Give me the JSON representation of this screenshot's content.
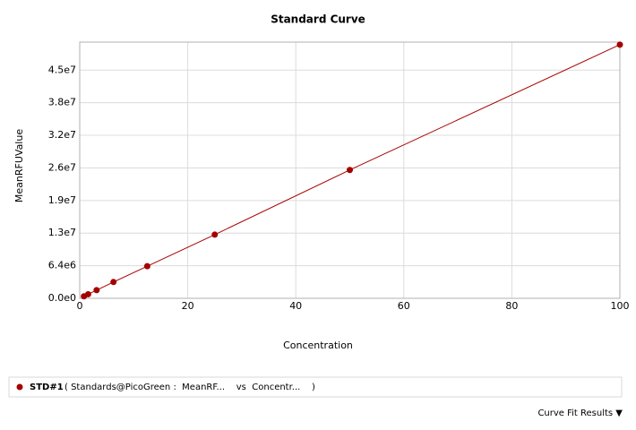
{
  "chart_data": {
    "type": "line",
    "title": "Standard Curve",
    "x_label": "Concentration",
    "y_label": "MeanRFUValue",
    "x": [
      0.78125,
      1.5625,
      3.125,
      6.25,
      12.5,
      25,
      50,
      100
    ],
    "series": [
      {
        "name": "STD#1",
        "color": "#a50000",
        "values": [
          400000,
          800000,
          1600000,
          3200000,
          6300000,
          12500000,
          25200000,
          49800000
        ]
      }
    ],
    "xlim": [
      0,
      100
    ],
    "xticks": [
      0,
      20,
      40,
      60,
      80,
      100
    ],
    "ylim": [
      0,
      50300000
    ],
    "yticks": [
      {
        "value": 0,
        "label": "0.0e0"
      },
      {
        "value": 6400000,
        "label": "6.4e6"
      },
      {
        "value": 12800000,
        "label": "1.3e7"
      },
      {
        "value": 19200000,
        "label": "1.9e7"
      },
      {
        "value": 25600000,
        "label": "2.6e7"
      },
      {
        "value": 32000000,
        "label": "3.2e7"
      },
      {
        "value": 38400000,
        "label": "3.8e7"
      },
      {
        "value": 44800000,
        "label": "4.5e7"
      }
    ],
    "grid": true
  },
  "legend_description": "( Standards@PicoGreen :  MeanRF...    vs  Concentr...    )",
  "footer_button": "Curve Fit Results ▼"
}
